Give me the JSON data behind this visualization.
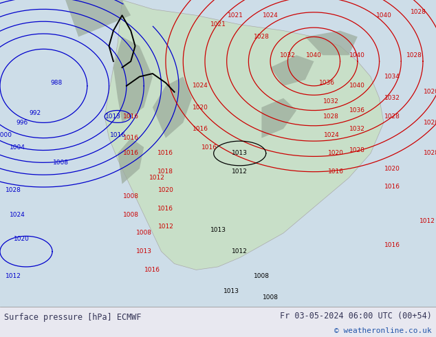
{
  "title_left": "Surface pressure [hPa] ECMWF",
  "title_right": "Fr 03-05-2024 06:00 UTC (00+54)",
  "copyright": "© weatheronline.co.uk",
  "bg_color": "#e8e8f0",
  "map_bg": "#f0f0f0",
  "land_color": "#c8dfc8",
  "land_color2": "#b8d0b8",
  "ocean_color": "#dce8f0",
  "contour_blue_color": "#0000cc",
  "contour_red_color": "#cc0000",
  "contour_black_color": "#000000",
  "bottom_bar_color": "#f5f5f5",
  "bottom_text_color": "#333355",
  "figsize": [
    6.34,
    4.9
  ],
  "dpi": 100,
  "bottom_bar_height": 0.09
}
